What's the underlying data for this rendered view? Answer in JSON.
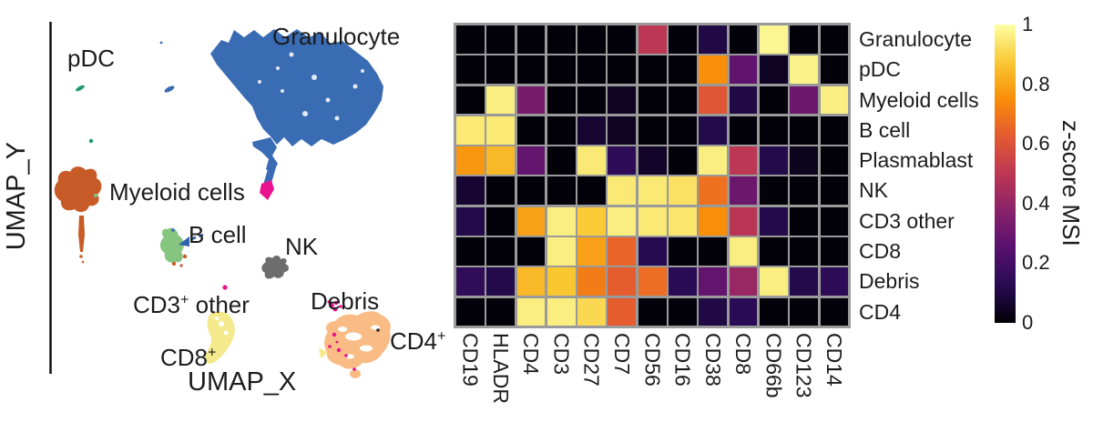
{
  "umap": {
    "labels": {
      "granulocyte": "Granulocyte",
      "pdc": "pDC",
      "myeloid": "Myeloid cells",
      "bcell": "B cell",
      "nk": "NK",
      "debris": "Debris",
      "cd3other_base": "CD3",
      "cd3other_rest": " other",
      "cd8_base": "CD8",
      "cd4_base": "CD4",
      "plus": "+",
      "x_axis": "UMAP_X",
      "y_axis": "UMAP_Y"
    },
    "cluster_colors": {
      "granulocyte": "#3a6cb4",
      "pdc": "#1d9a6c",
      "myeloid": "#c75b27",
      "bcell": "#85c57f",
      "nk": "#6d6d6d",
      "debris": "#e8128f",
      "cd3other_cd8": "#f4e98c",
      "cd4": "#f9bc85"
    }
  },
  "chart_data": [
    {
      "type": "scatter",
      "title": "UMAP cell clusters",
      "xlabel": "UMAP_X",
      "ylabel": "UMAP_Y",
      "axis_ticks": "none",
      "clusters": [
        {
          "label": "Granulocyte",
          "color": "#3a6cb4",
          "approx_center": [
            0.65,
            0.22
          ]
        },
        {
          "label": "pDC",
          "color": "#1d9a6c",
          "approx_center": [
            0.12,
            0.24
          ]
        },
        {
          "label": "Myeloid cells",
          "color": "#c75b27",
          "approx_center": [
            0.09,
            0.48
          ]
        },
        {
          "label": "B cell",
          "color": "#85c57f",
          "approx_center": [
            0.31,
            0.62
          ]
        },
        {
          "label": "NK",
          "color": "#6d6d6d",
          "approx_center": [
            0.57,
            0.68
          ]
        },
        {
          "label": "Debris",
          "color": "#e8128f",
          "approx_center": [
            0.73,
            0.78
          ]
        },
        {
          "label": "CD3+ other",
          "color": "#f4e98c",
          "approx_center": [
            0.42,
            0.84
          ]
        },
        {
          "label": "CD8+",
          "color": "#f4e98c",
          "approx_center": [
            0.42,
            0.88
          ]
        },
        {
          "label": "CD4+",
          "color": "#f9bc85",
          "approx_center": [
            0.78,
            0.87
          ]
        }
      ]
    },
    {
      "type": "heatmap",
      "rows": [
        "Granulocyte",
        "pDC",
        "Myeloid cells",
        "B cell",
        "Plasmablast",
        "NK",
        "CD3 other",
        "CD8",
        "Debris",
        "CD4"
      ],
      "columns": [
        "CD19",
        "HLADR",
        "CD4",
        "CD3",
        "CD27",
        "CD7",
        "CD56",
        "CD16",
        "CD38",
        "CD8",
        "CD66b",
        "CD123",
        "CD14"
      ],
      "values": [
        [
          0.01,
          0.01,
          0.01,
          0.01,
          0.01,
          0.01,
          0.5,
          0.01,
          0.1,
          0.01,
          0.98,
          0.01,
          0.01
        ],
        [
          0.01,
          0.01,
          0.01,
          0.01,
          0.01,
          0.01,
          0.01,
          0.01,
          0.75,
          0.27,
          0.05,
          0.97,
          0.01
        ],
        [
          0.01,
          0.96,
          0.33,
          0.01,
          0.01,
          0.05,
          0.01,
          0.01,
          0.61,
          0.1,
          0.01,
          0.3,
          0.96
        ],
        [
          0.95,
          0.95,
          0.01,
          0.01,
          0.07,
          0.05,
          0.01,
          0.01,
          0.11,
          0.01,
          0.01,
          0.01,
          0.01
        ],
        [
          0.77,
          0.84,
          0.28,
          0.01,
          0.95,
          0.14,
          0.06,
          0.01,
          0.96,
          0.5,
          0.11,
          0.04,
          0.01
        ],
        [
          0.07,
          0.01,
          0.01,
          0.01,
          0.01,
          0.95,
          0.95,
          0.93,
          0.68,
          0.3,
          0.01,
          0.01,
          0.01
        ],
        [
          0.11,
          0.01,
          0.79,
          0.96,
          0.88,
          0.96,
          0.95,
          0.94,
          0.75,
          0.49,
          0.11,
          0.01,
          0.01
        ],
        [
          0.01,
          0.01,
          0.01,
          0.96,
          0.79,
          0.65,
          0.12,
          0.01,
          0.01,
          0.96,
          0.01,
          0.01,
          0.01
        ],
        [
          0.15,
          0.11,
          0.84,
          0.87,
          0.71,
          0.63,
          0.67,
          0.13,
          0.28,
          0.41,
          0.96,
          0.11,
          0.14
        ],
        [
          0.01,
          0.01,
          0.96,
          0.96,
          0.91,
          0.63,
          0.01,
          0.01,
          0.1,
          0.13,
          0.01,
          0.01,
          0.01
        ]
      ],
      "vmin": 0,
      "vmax": 1,
      "colormap": "inferno",
      "grid_color": "#9a9a9a",
      "colorbar_label": "z-score MSI",
      "colorbar_ticks": [
        "1",
        "0.8",
        "0.6",
        "0.4",
        "0.2",
        "0"
      ]
    }
  ]
}
